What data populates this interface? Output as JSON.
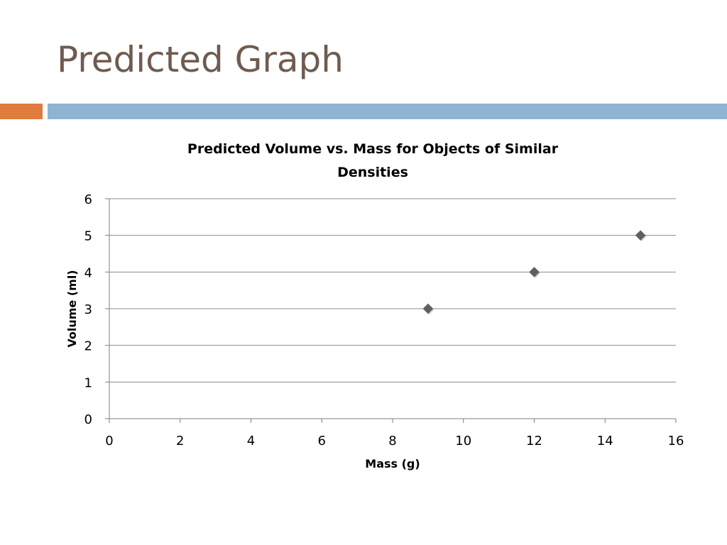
{
  "slide": {
    "title": "Predicted Graph"
  },
  "colors": {
    "title_text": "#6f5b4f",
    "accent_bar": "#e07c3e",
    "rule_bar": "#8fb4d2",
    "gridline": "#8c8c8c",
    "axis": "#7f7f7f",
    "marker": "#5f5f5f"
  },
  "chart_data": {
    "type": "scatter",
    "title_lines": [
      "Predicted Volume vs. Mass for Objects of Similar",
      "Densities"
    ],
    "xlabel": "Mass (g)",
    "ylabel": "Volume (ml)",
    "xlim": [
      0,
      16
    ],
    "ylim": [
      0,
      6
    ],
    "x_ticks": [
      0,
      2,
      4,
      6,
      8,
      10,
      12,
      14,
      16
    ],
    "y_ticks": [
      0,
      1,
      2,
      3,
      4,
      5,
      6
    ],
    "grid": "horizontal",
    "legend": "none",
    "marker": "diamond",
    "series": [
      {
        "points": [
          {
            "x": 9,
            "y": 3
          },
          {
            "x": 12,
            "y": 4
          },
          {
            "x": 15,
            "y": 5
          }
        ]
      }
    ]
  }
}
